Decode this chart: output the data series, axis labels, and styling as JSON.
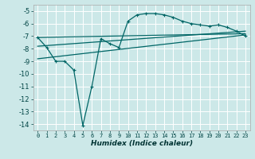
{
  "xlabel": "Humidex (Indice chaleur)",
  "bg_color": "#cce8e8",
  "grid_color": "#ffffff",
  "line_color": "#006666",
  "xlim": [
    -0.5,
    23.5
  ],
  "ylim": [
    -14.5,
    -4.5
  ],
  "xticks": [
    0,
    1,
    2,
    3,
    4,
    5,
    6,
    7,
    8,
    9,
    10,
    11,
    12,
    13,
    14,
    15,
    16,
    17,
    18,
    19,
    20,
    21,
    22,
    23
  ],
  "yticks": [
    -5,
    -6,
    -7,
    -8,
    -9,
    -10,
    -11,
    -12,
    -13,
    -14
  ],
  "xtick_labels": [
    "0",
    "1",
    "2",
    "3",
    "4",
    "5",
    "6",
    "7",
    "8",
    "9",
    "10",
    "11",
    "12",
    "13",
    "14",
    "15",
    "16",
    "17",
    "18",
    "19",
    "20",
    "21",
    "22",
    "23"
  ],
  "curve1_x": [
    0,
    1,
    2,
    3,
    4,
    5,
    6,
    7,
    8,
    9,
    10,
    11,
    12,
    13,
    14,
    15,
    16,
    17,
    18,
    19,
    20,
    21,
    22,
    23
  ],
  "curve1_y": [
    -7.1,
    -7.9,
    -9.0,
    -9.0,
    -9.7,
    -14.1,
    -11.0,
    -7.2,
    -7.6,
    -7.9,
    -5.8,
    -5.3,
    -5.2,
    -5.2,
    -5.3,
    -5.5,
    -5.8,
    -6.0,
    -6.1,
    -6.2,
    -6.1,
    -6.3,
    -6.6,
    -7.0
  ],
  "curve2_x": [
    0,
    23
  ],
  "curve2_y": [
    -7.1,
    -6.8
  ],
  "curve3_x": [
    0,
    23
  ],
  "curve3_y": [
    -7.8,
    -6.6
  ],
  "curve4_x": [
    0,
    23
  ],
  "curve4_y": [
    -8.8,
    -6.9
  ]
}
